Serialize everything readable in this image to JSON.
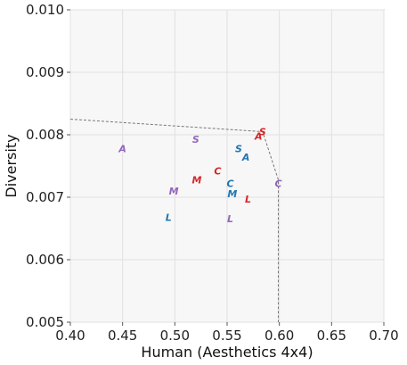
{
  "chart_data": {
    "type": "scatter",
    "title": "",
    "xlabel": "Human (Aesthetics 4x4)",
    "ylabel": "Diversity",
    "xlim": [
      0.4,
      0.7
    ],
    "ylim": [
      0.005,
      0.01
    ],
    "x_ticks": [
      "0.40",
      "0.45",
      "0.50",
      "0.55",
      "0.60",
      "0.65",
      "0.70"
    ],
    "y_ticks": [
      "0.005",
      "0.006",
      "0.007",
      "0.008",
      "0.009",
      "0.010"
    ],
    "grid": true,
    "background": "#f7f7f7",
    "colors": {
      "red": "#d62728",
      "blue": "#1f77b4",
      "purple": "#9467bd",
      "frontier": "#777777"
    },
    "points": [
      {
        "label": "S",
        "x": 0.584,
        "y": 0.00805,
        "color": "red"
      },
      {
        "label": "A",
        "x": 0.58,
        "y": 0.00798,
        "color": "red"
      },
      {
        "label": "C",
        "x": 0.541,
        "y": 0.00742,
        "color": "red"
      },
      {
        "label": "M",
        "x": 0.521,
        "y": 0.00728,
        "color": "red"
      },
      {
        "label": "L",
        "x": 0.57,
        "y": 0.00697,
        "color": "red"
      },
      {
        "label": "S",
        "x": 0.561,
        "y": 0.00778,
        "color": "blue"
      },
      {
        "label": "A",
        "x": 0.568,
        "y": 0.00764,
        "color": "blue"
      },
      {
        "label": "C",
        "x": 0.553,
        "y": 0.00722,
        "color": "blue"
      },
      {
        "label": "M",
        "x": 0.555,
        "y": 0.00706,
        "color": "blue"
      },
      {
        "label": "L",
        "x": 0.494,
        "y": 0.00668,
        "color": "blue"
      },
      {
        "label": "A",
        "x": 0.45,
        "y": 0.00778,
        "color": "purple"
      },
      {
        "label": "S",
        "x": 0.52,
        "y": 0.00793,
        "color": "purple"
      },
      {
        "label": "M",
        "x": 0.499,
        "y": 0.0071,
        "color": "purple"
      },
      {
        "label": "C",
        "x": 0.599,
        "y": 0.00722,
        "color": "purple"
      },
      {
        "label": "L",
        "x": 0.553,
        "y": 0.00666,
        "color": "purple"
      }
    ],
    "frontier": [
      {
        "x": 0.4,
        "y": 0.00825
      },
      {
        "x": 0.584,
        "y": 0.00805
      },
      {
        "x": 0.599,
        "y": 0.00728
      },
      {
        "x": 0.599,
        "y": 0.005
      }
    ]
  }
}
